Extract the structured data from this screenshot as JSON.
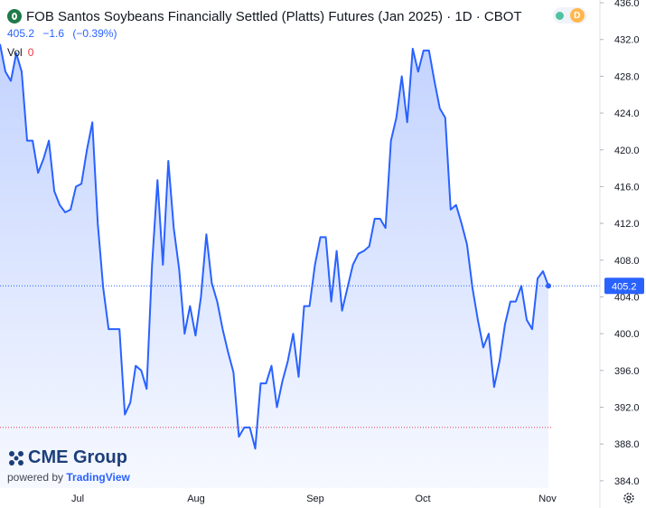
{
  "header": {
    "title": "FOB Santos Soybeans Financially Settled (Platts) Futures (Jan 2025) · 1D · CBOT",
    "last": "405.2",
    "change": "−1.6",
    "change_pct": "(−0.39%)",
    "vol_label": "Vol",
    "vol_value": "0",
    "market_badge": "D"
  },
  "branding": {
    "logo_text": "CME Group",
    "powered_by": "powered by",
    "powered_brand": "TradingView"
  },
  "colors": {
    "line": "#2962ff",
    "accent": "#2962ff",
    "negative": "#f23645"
  },
  "icons": [
    "symbol-icon",
    "market-status-dot-icon",
    "settings-gear-icon"
  ],
  "chart_data": {
    "type": "area",
    "title": "FOB Santos Soybeans Financially Settled (Platts) Futures (Jan 2025) · 1D · CBOT",
    "x_tick_labels": [
      "Jul",
      "Aug",
      "Sep",
      "Oct",
      "Nov"
    ],
    "y_tick_labels": [
      "384.0",
      "388.0",
      "392.0",
      "396.0",
      "400.0",
      "404.0",
      "408.0",
      "412.0",
      "416.0",
      "420.0",
      "424.0",
      "428.0",
      "432.0",
      "436.0"
    ],
    "ylim": [
      383.2,
      436.3
    ],
    "last_value_label": "405.2",
    "reference_line": 389.8,
    "grid": false,
    "series": [
      {
        "values": [
          431.5,
          428.5,
          427.5,
          430.5,
          428.5,
          421.0,
          421.0,
          417.5,
          419.0,
          421.0,
          415.5,
          414.0,
          413.2,
          413.5,
          416.0,
          416.3,
          420.0,
          423.0,
          412.0,
          405.0,
          400.5,
          400.5,
          400.5,
          391.2,
          392.5,
          396.5,
          396.0,
          394.0,
          407.5,
          416.7,
          407.5,
          418.8,
          411.5,
          407.0,
          400.0,
          403.0,
          399.8,
          404.0,
          410.8,
          405.5,
          403.5,
          400.5,
          398.0,
          395.8,
          388.8,
          389.8,
          389.8,
          387.5,
          394.6,
          394.6,
          396.5,
          392.0,
          394.8,
          397.0,
          400.0,
          395.3,
          403.0,
          403.0,
          407.5,
          410.5,
          410.5,
          403.5,
          409.0,
          402.5,
          405.0,
          407.5,
          408.7,
          409.0,
          409.5,
          412.5,
          412.5,
          411.5,
          421.0,
          423.5,
          428.0,
          423.0,
          431.0,
          428.5,
          430.8,
          430.8,
          427.5,
          424.5,
          423.5,
          413.5,
          414.0,
          412.0,
          409.7,
          405.0,
          401.5,
          398.5,
          400.0,
          394.2,
          397.0,
          401.0,
          403.5,
          403.5,
          405.2,
          401.5,
          400.5,
          406.0,
          406.8,
          405.2
        ]
      }
    ]
  }
}
